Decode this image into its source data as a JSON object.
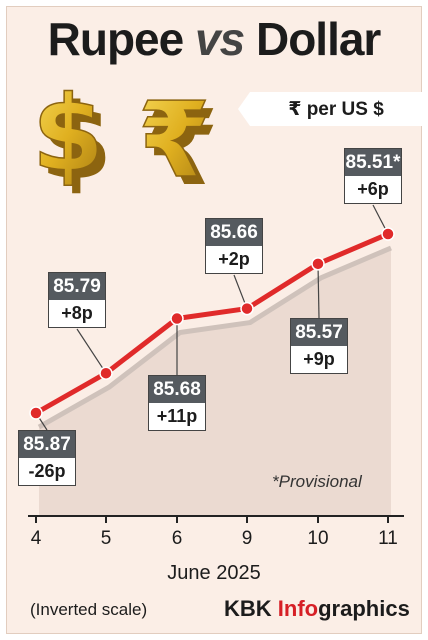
{
  "header": {
    "title_part1": "Rupee ",
    "title_vs": "vs",
    "title_part2": " Dollar",
    "unit": "₹ per US $"
  },
  "illustration": {
    "icons": [
      "dollar-sign-3d-icon",
      "rupee-sign-3d-icon"
    ],
    "color": "#e0b020"
  },
  "chart_data": {
    "type": "line",
    "x": [
      "4",
      "5",
      "6",
      "9",
      "10",
      "11"
    ],
    "series": [
      {
        "values": [
          85.87,
          85.79,
          85.68,
          85.66,
          85.57,
          85.51
        ],
        "color": "#e02a2a"
      }
    ],
    "point_labels": [
      {
        "value": "85.87",
        "change": "-26p"
      },
      {
        "value": "85.79",
        "change": "+8p"
      },
      {
        "value": "85.68",
        "change": "+11p"
      },
      {
        "value": "85.66",
        "change": "+2p"
      },
      {
        "value": "85.57",
        "change": "+9p"
      },
      {
        "value": "85.51*",
        "change": "+6p"
      }
    ],
    "xlabel": "June 2025",
    "y_inverted": true,
    "grid": false,
    "footnote": "*Provisional",
    "scale_note": "(Inverted scale)"
  },
  "footer": {
    "credit_part1": "KBK ",
    "credit_accent": "Info",
    "credit_part2": "graphics"
  },
  "colors": {
    "background": "#fbeee6",
    "line": "#e02a2a",
    "label_box": "#555a5f",
    "accent": "#d61f26"
  }
}
